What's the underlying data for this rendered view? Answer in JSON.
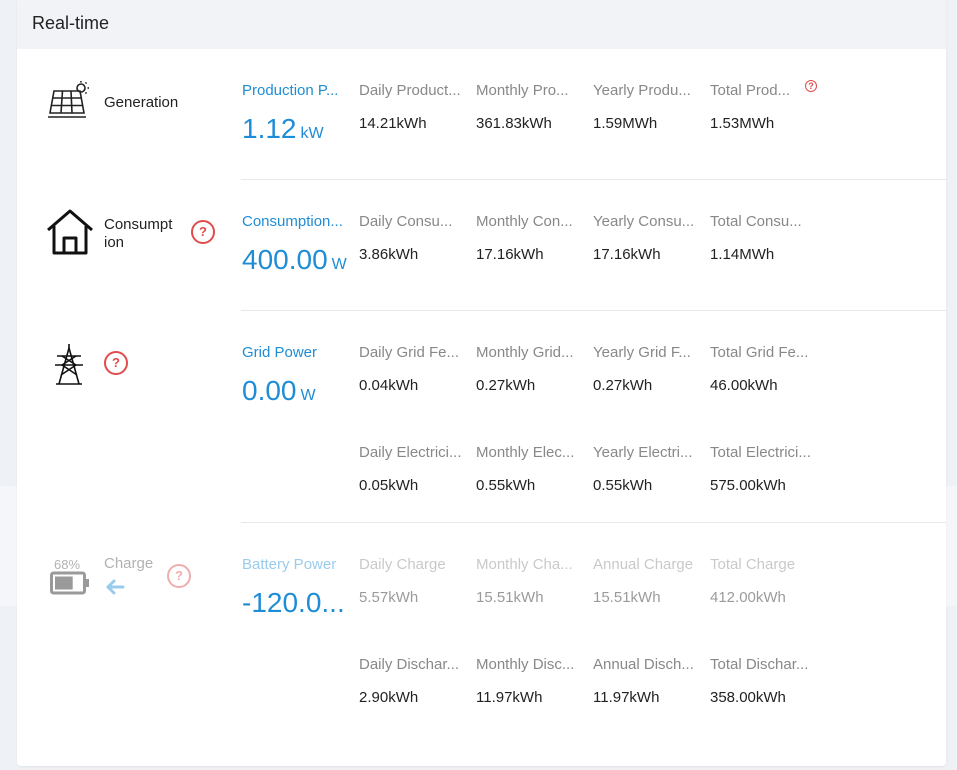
{
  "header": {
    "title": "Real-time"
  },
  "generation": {
    "label": "Generation",
    "main_title": "Production P...",
    "main_value": "1.12",
    "main_unit": "kW",
    "stats": [
      {
        "title": "Daily Product...",
        "value": "14.21kWh"
      },
      {
        "title": "Monthly Pro...",
        "value": "361.83kWh"
      },
      {
        "title": "Yearly Produ...",
        "value": "1.59MWh"
      },
      {
        "title": "Total Prod...",
        "value": "1.53MWh"
      }
    ],
    "help": "?"
  },
  "consumption": {
    "label": "Consumpt ion",
    "main_title": "Consumption...",
    "main_value": "400.00",
    "main_unit": "W",
    "help": "?",
    "stats": [
      {
        "title": "Daily Consu...",
        "value": "3.86kWh"
      },
      {
        "title": "Monthly Con...",
        "value": "17.16kWh"
      },
      {
        "title": "Yearly Consu...",
        "value": "17.16kWh"
      },
      {
        "title": "Total Consu...",
        "value": "1.14MWh"
      }
    ]
  },
  "grid": {
    "main_title": "Grid Power",
    "main_value": "0.00",
    "main_unit": "W",
    "help": "?",
    "stats_feed": [
      {
        "title": "Daily Grid Fe...",
        "value": "0.04kWh"
      },
      {
        "title": "Monthly Grid...",
        "value": "0.27kWh"
      },
      {
        "title": "Yearly Grid F...",
        "value": "0.27kWh"
      },
      {
        "title": "Total Grid Fe...",
        "value": "46.00kWh"
      }
    ],
    "stats_purchase": [
      {
        "title": "Daily Electrici...",
        "value": "0.05kWh"
      },
      {
        "title": "Monthly Elec...",
        "value": "0.55kWh"
      },
      {
        "title": "Yearly Electri...",
        "value": "0.55kWh"
      },
      {
        "title": "Total Electrici...",
        "value": "575.00kWh"
      }
    ]
  },
  "battery": {
    "soc": "68%",
    "soc_level": 0.68,
    "label": "Charge",
    "help": "?",
    "main_title": "Battery Power",
    "main_value": "-120.0...",
    "stats_charge": [
      {
        "title": "Daily Charge",
        "value": "5.57kWh"
      },
      {
        "title": "Monthly Cha...",
        "value": "15.51kWh"
      },
      {
        "title": "Annual Charge",
        "value": "15.51kWh"
      },
      {
        "title": "Total Charge",
        "value": "412.00kWh"
      }
    ],
    "stats_discharge": [
      {
        "title": "Daily Dischar...",
        "value": "2.90kWh"
      },
      {
        "title": "Monthly Disc...",
        "value": "11.97kWh"
      },
      {
        "title": "Annual Disch...",
        "value": "11.97kWh"
      },
      {
        "title": "Total Dischar...",
        "value": "358.00kWh"
      }
    ]
  },
  "colors": {
    "accent": "#1f8dd6",
    "help": "#e04b4b",
    "muted": "#888888"
  }
}
